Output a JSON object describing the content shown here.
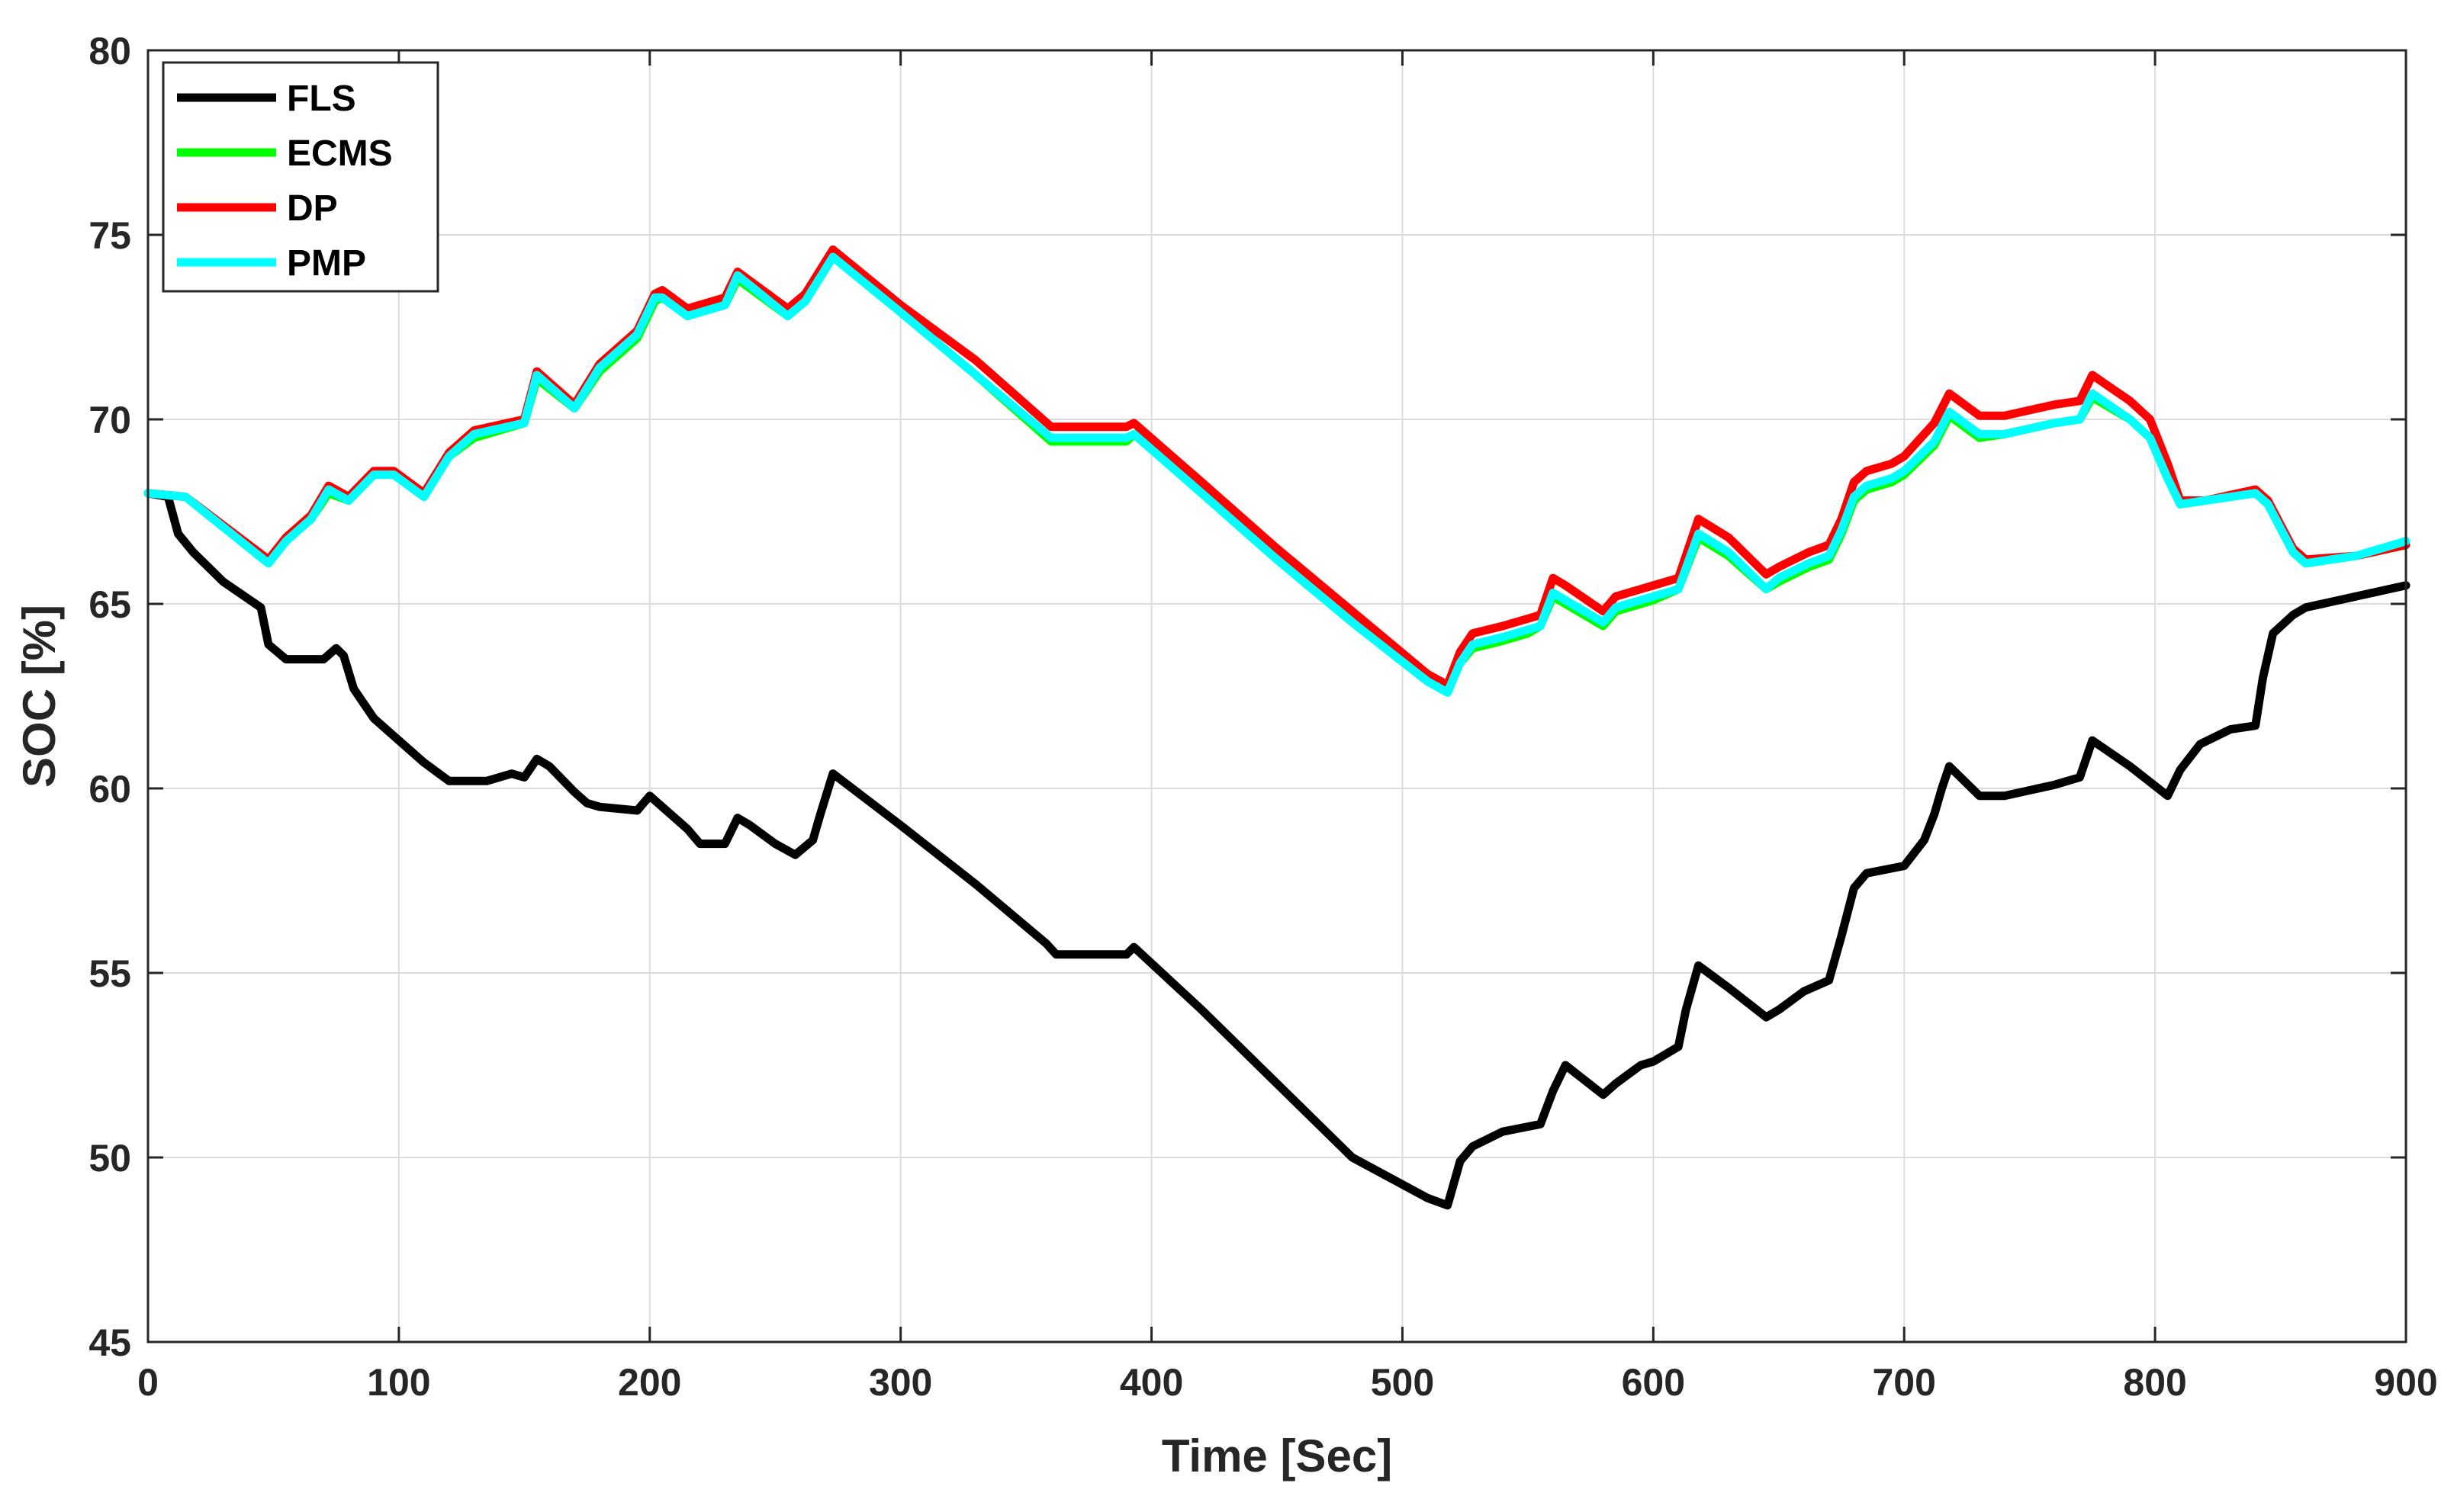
{
  "chart_data": {
    "type": "line",
    "xlabel": "Time [Sec]",
    "ylabel": "SOC [%]",
    "xlim": [
      0,
      900
    ],
    "ylim": [
      45,
      80
    ],
    "xticks": [
      0,
      100,
      200,
      300,
      400,
      500,
      600,
      700,
      800,
      900
    ],
    "yticks": [
      45,
      50,
      55,
      60,
      65,
      70,
      75,
      80
    ],
    "grid": true,
    "legend_position": "top-left",
    "series": [
      {
        "name": "FLS",
        "color": "#000000",
        "x": [
          0,
          8,
          12,
          18,
          30,
          45,
          48,
          55,
          70,
          75,
          78,
          82,
          90,
          100,
          110,
          120,
          135,
          145,
          150,
          155,
          160,
          170,
          175,
          180,
          195,
          200,
          205,
          210,
          215,
          220,
          230,
          235,
          240,
          250,
          258,
          265,
          268,
          273,
          300,
          330,
          358,
          362,
          390,
          393,
          420,
          450,
          480,
          510,
          518,
          523,
          528,
          540,
          555,
          560,
          565,
          580,
          585,
          595,
          600,
          610,
          613,
          618,
          630,
          645,
          650,
          660,
          670,
          675,
          680,
          685,
          700,
          708,
          712,
          715,
          718,
          730,
          740,
          760,
          770,
          775,
          790,
          805,
          810,
          818,
          830,
          840,
          843,
          847,
          855,
          860,
          880,
          900
        ],
        "y": [
          68,
          67.9,
          66.9,
          66.4,
          65.6,
          64.9,
          63.9,
          63.5,
          63.5,
          63.8,
          63.6,
          62.7,
          61.9,
          61.3,
          60.7,
          60.2,
          60.2,
          60.4,
          60.3,
          60.8,
          60.6,
          59.9,
          59.6,
          59.5,
          59.4,
          59.8,
          59.5,
          59.2,
          58.9,
          58.5,
          58.5,
          59.2,
          59.0,
          58.5,
          58.2,
          58.6,
          59.3,
          60.4,
          59.0,
          57.4,
          55.8,
          55.5,
          55.5,
          55.7,
          54.0,
          52.0,
          50.0,
          48.9,
          48.7,
          49.9,
          50.3,
          50.7,
          50.9,
          51.8,
          52.5,
          51.7,
          52.0,
          52.5,
          52.6,
          53.0,
          54.0,
          55.2,
          54.6,
          53.8,
          54.0,
          54.5,
          54.8,
          56.0,
          57.3,
          57.7,
          57.9,
          58.6,
          59.3,
          60.0,
          60.6,
          59.8,
          59.8,
          60.1,
          60.3,
          61.3,
          60.6,
          59.8,
          60.5,
          61.2,
          61.6,
          61.7,
          63.0,
          64.2,
          64.7,
          64.9,
          65.2,
          65.5
        ]
      },
      {
        "name": "ECMS",
        "color": "#00ff00",
        "x": [
          0,
          15,
          48,
          55,
          65,
          72,
          80,
          90,
          98,
          110,
          120,
          130,
          150,
          155,
          170,
          180,
          195,
          202,
          205,
          215,
          230,
          235,
          255,
          262,
          273,
          300,
          330,
          360,
          390,
          393,
          420,
          450,
          480,
          510,
          518,
          523,
          528,
          540,
          550,
          555,
          560,
          565,
          580,
          585,
          600,
          610,
          618,
          630,
          645,
          650,
          662,
          670,
          675,
          680,
          685,
          695,
          700,
          712,
          718,
          730,
          740,
          760,
          770,
          775,
          790,
          798,
          805,
          810,
          820,
          840,
          845,
          855,
          860,
          880,
          900
        ],
        "y": [
          68,
          67.9,
          66.1,
          66.7,
          67.3,
          68.0,
          67.8,
          68.5,
          68.5,
          67.9,
          69.0,
          69.5,
          69.9,
          71.1,
          70.3,
          71.3,
          72.2,
          73.2,
          73.3,
          72.8,
          73.1,
          73.8,
          72.8,
          73.2,
          74.4,
          72.9,
          71.2,
          69.4,
          69.4,
          69.6,
          68.0,
          66.2,
          64.5,
          62.9,
          62.6,
          63.4,
          63.8,
          64.0,
          64.2,
          64.4,
          65.2,
          65.0,
          64.4,
          64.8,
          65.1,
          65.4,
          66.8,
          66.3,
          65.4,
          65.6,
          66.0,
          66.2,
          66.9,
          67.8,
          68.1,
          68.3,
          68.5,
          69.3,
          70.1,
          69.5,
          69.6,
          69.9,
          70.0,
          70.6,
          70.0,
          69.5,
          68.4,
          67.7,
          67.8,
          68.0,
          67.7,
          66.4,
          66.1,
          66.3,
          66.6
        ]
      },
      {
        "name": "DP",
        "color": "#ff0000",
        "x": [
          0,
          15,
          48,
          55,
          65,
          72,
          80,
          90,
          98,
          110,
          120,
          130,
          150,
          155,
          170,
          180,
          195,
          202,
          205,
          215,
          230,
          235,
          255,
          262,
          273,
          300,
          330,
          360,
          390,
          393,
          420,
          450,
          480,
          510,
          518,
          523,
          528,
          540,
          550,
          555,
          560,
          565,
          580,
          585,
          600,
          610,
          618,
          630,
          645,
          650,
          662,
          670,
          675,
          680,
          685,
          695,
          700,
          712,
          718,
          730,
          740,
          760,
          770,
          775,
          790,
          798,
          805,
          810,
          820,
          840,
          845,
          855,
          860,
          880,
          900
        ],
        "y": [
          68,
          67.9,
          66.2,
          66.8,
          67.4,
          68.2,
          67.9,
          68.6,
          68.6,
          68.0,
          69.1,
          69.7,
          70.0,
          71.3,
          70.4,
          71.5,
          72.4,
          73.4,
          73.5,
          73.0,
          73.3,
          74.0,
          73.0,
          73.4,
          74.6,
          73.1,
          71.6,
          69.8,
          69.8,
          69.9,
          68.3,
          66.5,
          64.8,
          63.1,
          62.8,
          63.7,
          64.2,
          64.4,
          64.6,
          64.7,
          65.7,
          65.5,
          64.8,
          65.2,
          65.5,
          65.7,
          67.3,
          66.8,
          65.8,
          66.0,
          66.4,
          66.6,
          67.3,
          68.3,
          68.6,
          68.8,
          69.0,
          69.9,
          70.7,
          70.1,
          70.1,
          70.4,
          70.5,
          71.2,
          70.5,
          70.0,
          68.8,
          67.8,
          67.8,
          68.1,
          67.8,
          66.5,
          66.2,
          66.3,
          66.6
        ]
      },
      {
        "name": "PMP",
        "color": "#00ffff",
        "x": [
          0,
          15,
          48,
          55,
          65,
          72,
          80,
          90,
          98,
          110,
          120,
          130,
          150,
          155,
          170,
          180,
          195,
          202,
          205,
          215,
          230,
          235,
          255,
          262,
          273,
          300,
          330,
          360,
          390,
          393,
          420,
          450,
          480,
          510,
          518,
          523,
          528,
          540,
          550,
          555,
          560,
          565,
          580,
          585,
          600,
          610,
          618,
          630,
          645,
          650,
          662,
          670,
          675,
          680,
          685,
          695,
          700,
          712,
          718,
          730,
          740,
          760,
          770,
          775,
          790,
          798,
          805,
          810,
          820,
          840,
          845,
          855,
          860,
          880,
          900
        ],
        "y": [
          68,
          67.9,
          66.1,
          66.7,
          67.3,
          68.1,
          67.8,
          68.5,
          68.5,
          67.9,
          69.0,
          69.6,
          69.9,
          71.2,
          70.3,
          71.4,
          72.3,
          73.3,
          73.3,
          72.8,
          73.1,
          73.9,
          72.8,
          73.2,
          74.4,
          72.9,
          71.2,
          69.5,
          69.5,
          69.6,
          68.0,
          66.2,
          64.5,
          62.9,
          62.6,
          63.4,
          63.9,
          64.1,
          64.3,
          64.4,
          65.3,
          65.1,
          64.5,
          64.9,
          65.2,
          65.4,
          66.9,
          66.4,
          65.4,
          65.7,
          66.1,
          66.3,
          67.0,
          67.9,
          68.2,
          68.4,
          68.6,
          69.4,
          70.2,
          69.6,
          69.6,
          69.9,
          70.0,
          70.7,
          70.0,
          69.5,
          68.4,
          67.7,
          67.8,
          68.0,
          67.7,
          66.4,
          66.1,
          66.3,
          66.7
        ]
      }
    ]
  }
}
